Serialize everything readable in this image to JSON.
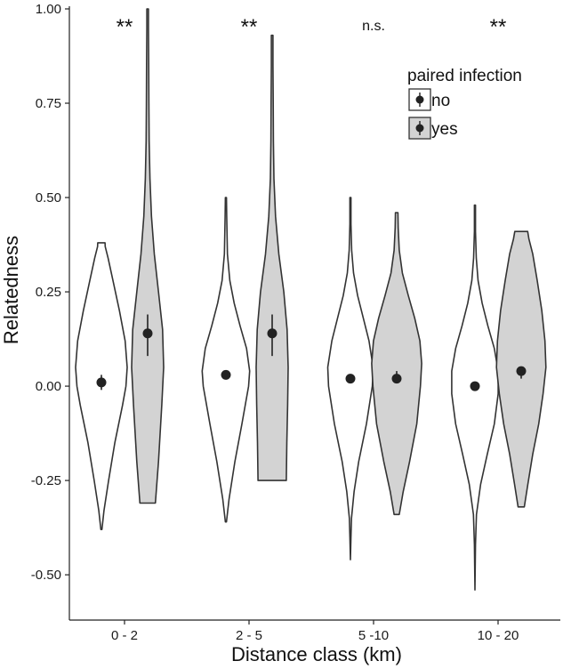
{
  "chart_data": {
    "type": "violin",
    "xlabel": "Distance class (km)",
    "ylabel": "Relatedness",
    "ylim": [
      -0.62,
      1.0
    ],
    "yticks": [
      "1.00",
      "0.75",
      "0.50",
      "0.25",
      "0.00",
      "-0.25",
      "-0.50"
    ],
    "ytick_values": [
      1.0,
      0.75,
      0.5,
      0.25,
      0.0,
      -0.25,
      -0.5
    ],
    "categories": [
      "0 - 2",
      "2 - 5",
      "5 -10",
      "10 - 20"
    ],
    "significance": [
      "**",
      "**",
      "n.s.",
      "**"
    ],
    "grid": false,
    "legend": {
      "title": "paired infection",
      "placement": "top-right",
      "items": [
        {
          "label": "no",
          "fill": "#ffffff"
        },
        {
          "label": "yes",
          "fill": "#d3d3d3"
        }
      ]
    },
    "series": [
      {
        "name": "no",
        "fill": "#ffffff",
        "groups": [
          {
            "min": -0.38,
            "max": 0.38,
            "mean": 0.01,
            "ci": [
              -0.01,
              0.03
            ],
            "profile": [
              [
                -0.38,
                0.02
              ],
              [
                -0.33,
                0.1
              ],
              [
                -0.25,
                0.28
              ],
              [
                -0.15,
                0.52
              ],
              [
                -0.05,
                0.82
              ],
              [
                0.0,
                0.95
              ],
              [
                0.05,
                1.0
              ],
              [
                0.12,
                0.92
              ],
              [
                0.2,
                0.7
              ],
              [
                0.28,
                0.45
              ],
              [
                0.34,
                0.26
              ],
              [
                0.37,
                0.15
              ],
              [
                0.38,
                0.14
              ]
            ]
          },
          {
            "min": -0.36,
            "max": 0.5,
            "mean": 0.03,
            "ci": [
              0.02,
              0.04
            ],
            "profile": [
              [
                -0.36,
                0.02
              ],
              [
                -0.3,
                0.12
              ],
              [
                -0.2,
                0.35
              ],
              [
                -0.1,
                0.62
              ],
              [
                0.0,
                0.88
              ],
              [
                0.04,
                0.92
              ],
              [
                0.1,
                0.8
              ],
              [
                0.16,
                0.55
              ],
              [
                0.22,
                0.32
              ],
              [
                0.28,
                0.15
              ],
              [
                0.35,
                0.06
              ],
              [
                0.45,
                0.03
              ],
              [
                0.5,
                0.02
              ]
            ]
          },
          {
            "min": -0.46,
            "max": 0.5,
            "mean": 0.02,
            "ci": [
              0.01,
              0.03
            ],
            "profile": [
              [
                -0.46,
                0.0
              ],
              [
                -0.4,
                0.02
              ],
              [
                -0.35,
                0.04
              ],
              [
                -0.28,
                0.14
              ],
              [
                -0.2,
                0.32
              ],
              [
                -0.1,
                0.62
              ],
              [
                0.0,
                0.85
              ],
              [
                0.05,
                0.88
              ],
              [
                0.12,
                0.72
              ],
              [
                0.18,
                0.5
              ],
              [
                0.24,
                0.28
              ],
              [
                0.3,
                0.12
              ],
              [
                0.36,
                0.05
              ],
              [
                0.43,
                0.02
              ],
              [
                0.5,
                0.02
              ]
            ]
          },
          {
            "min": -0.54,
            "max": 0.48,
            "mean": 0.0,
            "ci": [
              -0.01,
              0.01
            ],
            "profile": [
              [
                -0.54,
                0.0
              ],
              [
                -0.42,
                0.02
              ],
              [
                -0.34,
                0.06
              ],
              [
                -0.26,
                0.22
              ],
              [
                -0.18,
                0.48
              ],
              [
                -0.1,
                0.75
              ],
              [
                -0.02,
                0.9
              ],
              [
                0.04,
                0.9
              ],
              [
                0.1,
                0.75
              ],
              [
                0.16,
                0.5
              ],
              [
                0.22,
                0.28
              ],
              [
                0.28,
                0.12
              ],
              [
                0.34,
                0.05
              ],
              [
                0.41,
                0.02
              ],
              [
                0.48,
                0.02
              ]
            ]
          }
        ]
      },
      {
        "name": "yes",
        "fill": "#d3d3d3",
        "groups": [
          {
            "min": -0.31,
            "max": 1.0,
            "mean": 0.14,
            "ci": [
              0.08,
              0.19
            ],
            "profile": [
              [
                -0.31,
                0.3
              ],
              [
                -0.2,
                0.42
              ],
              [
                -0.05,
                0.55
              ],
              [
                0.05,
                0.62
              ],
              [
                0.15,
                0.58
              ],
              [
                0.25,
                0.42
              ],
              [
                0.35,
                0.26
              ],
              [
                0.45,
                0.15
              ],
              [
                0.55,
                0.09
              ],
              [
                0.65,
                0.06
              ],
              [
                0.75,
                0.05
              ],
              [
                0.85,
                0.04
              ],
              [
                0.95,
                0.03
              ],
              [
                1.0,
                0.03
              ]
            ]
          },
          {
            "min": -0.25,
            "max": 0.93,
            "mean": 0.14,
            "ci": [
              0.08,
              0.19
            ],
            "profile": [
              [
                -0.25,
                0.55
              ],
              [
                -0.15,
                0.57
              ],
              [
                -0.05,
                0.6
              ],
              [
                0.05,
                0.62
              ],
              [
                0.15,
                0.58
              ],
              [
                0.25,
                0.45
              ],
              [
                0.35,
                0.26
              ],
              [
                0.45,
                0.13
              ],
              [
                0.55,
                0.07
              ],
              [
                0.65,
                0.05
              ],
              [
                0.75,
                0.04
              ],
              [
                0.85,
                0.03
              ],
              [
                0.93,
                0.03
              ]
            ]
          },
          {
            "min": -0.34,
            "max": 0.46,
            "mean": 0.02,
            "ci": [
              0.01,
              0.04
            ],
            "profile": [
              [
                -0.34,
                0.1
              ],
              [
                -0.28,
                0.25
              ],
              [
                -0.2,
                0.5
              ],
              [
                -0.1,
                0.78
              ],
              [
                0.0,
                0.92
              ],
              [
                0.06,
                0.97
              ],
              [
                0.12,
                0.9
              ],
              [
                0.18,
                0.7
              ],
              [
                0.24,
                0.45
              ],
              [
                0.3,
                0.22
              ],
              [
                0.36,
                0.1
              ],
              [
                0.42,
                0.06
              ],
              [
                0.46,
                0.05
              ]
            ]
          },
          {
            "min": -0.32,
            "max": 0.41,
            "mean": 0.04,
            "ci": [
              0.02,
              0.05
            ],
            "profile": [
              [
                -0.32,
                0.12
              ],
              [
                -0.26,
                0.26
              ],
              [
                -0.18,
                0.45
              ],
              [
                -0.1,
                0.68
              ],
              [
                -0.02,
                0.85
              ],
              [
                0.05,
                0.96
              ],
              [
                0.12,
                0.92
              ],
              [
                0.2,
                0.8
              ],
              [
                0.28,
                0.62
              ],
              [
                0.35,
                0.45
              ],
              [
                0.39,
                0.3
              ],
              [
                0.41,
                0.25
              ]
            ]
          }
        ]
      }
    ]
  }
}
